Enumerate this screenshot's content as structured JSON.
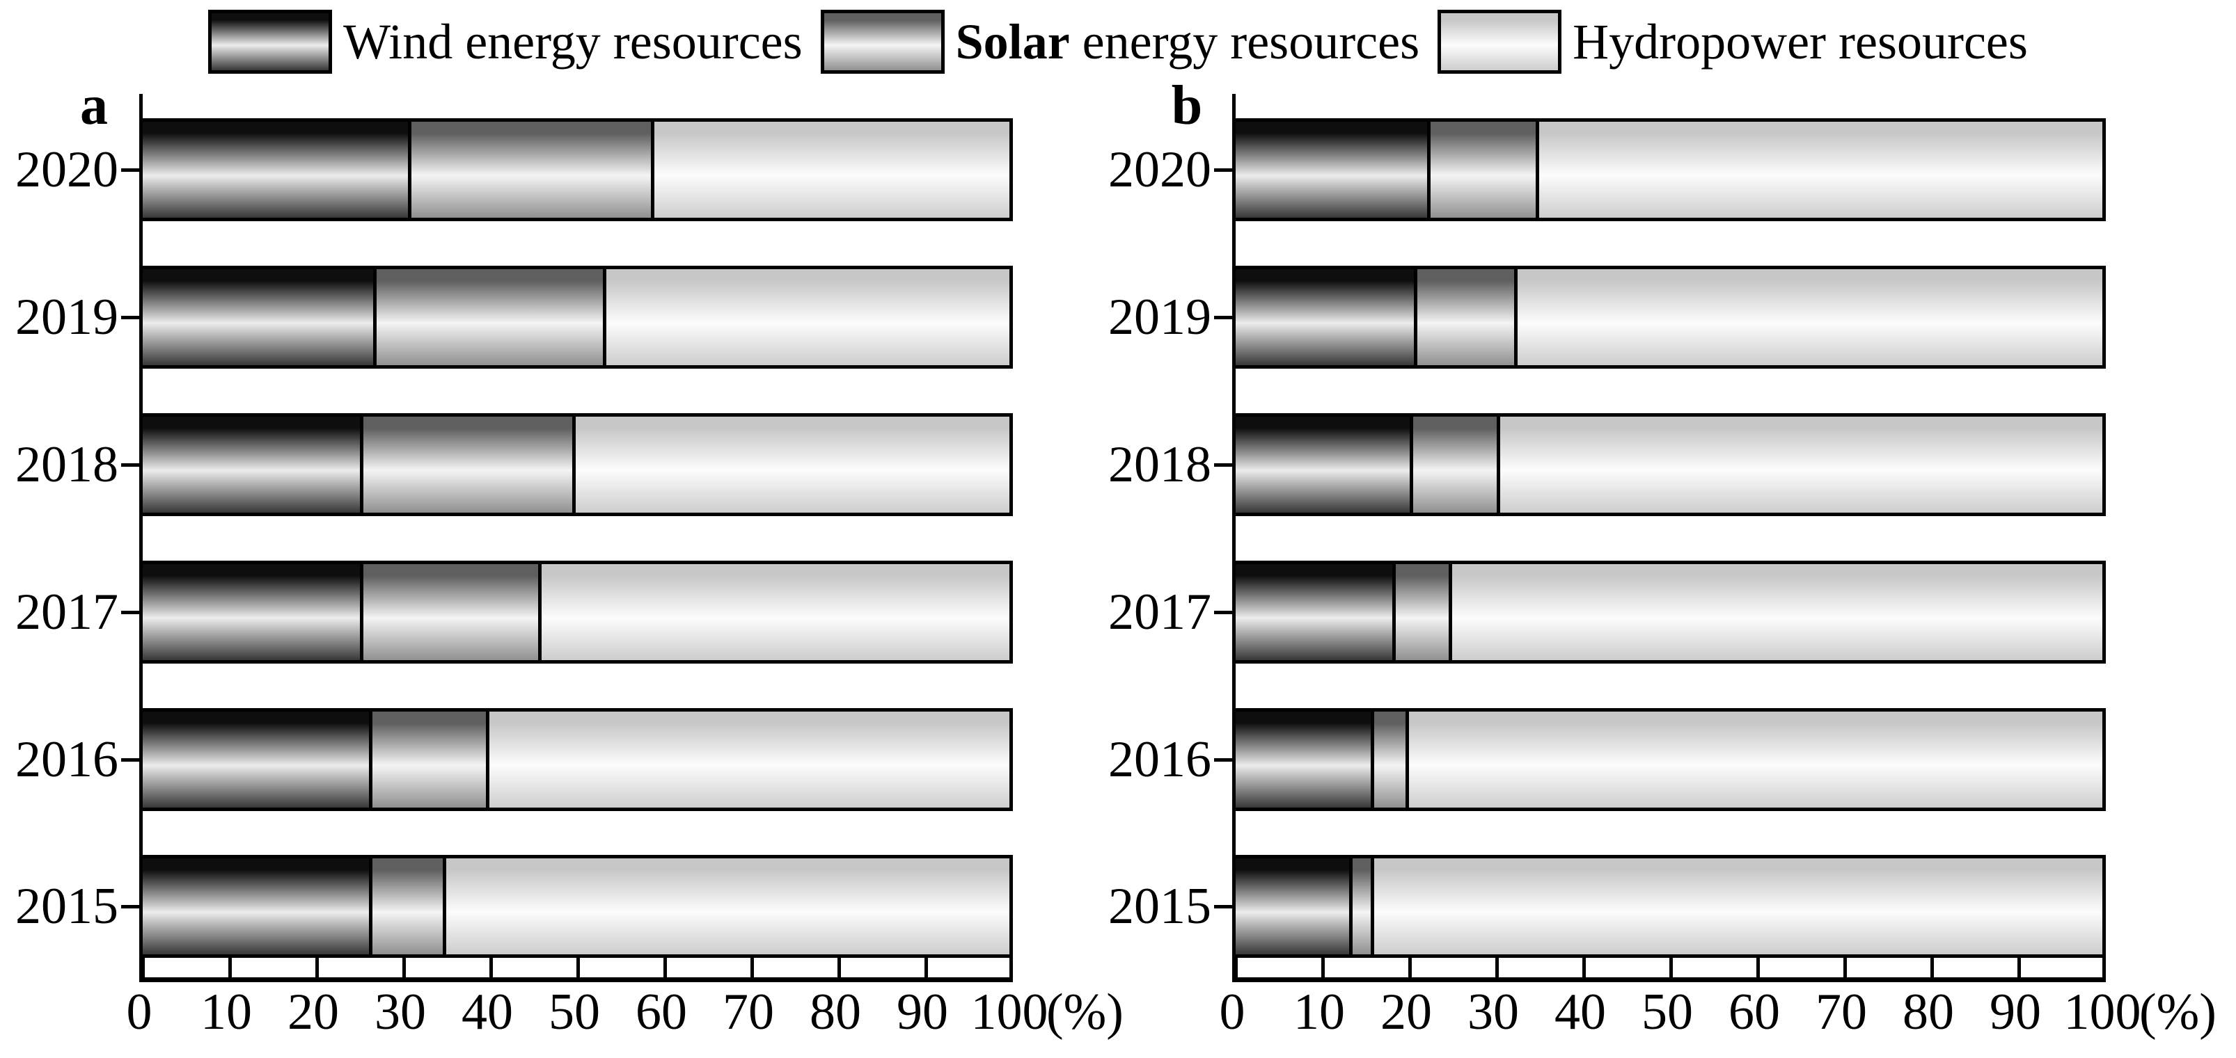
{
  "legend": {
    "items": [
      {
        "id": "wind",
        "bold": "",
        "text": "Wind energy resources"
      },
      {
        "id": "solar",
        "bold": "Solar",
        "text": " energy resources"
      },
      {
        "id": "hydro",
        "bold": "",
        "text": "Hydropower resources"
      }
    ]
  },
  "chart_data": [
    {
      "type": "bar",
      "orientation": "horizontal",
      "stacked": true,
      "panel_label": "a",
      "categories": [
        "2020",
        "2019",
        "2018",
        "2017",
        "2016",
        "2015"
      ],
      "series": [
        {
          "name": "Wind energy resources",
          "key": "wind",
          "values": [
            31,
            27,
            25.5,
            25.5,
            26.5,
            26.5
          ]
        },
        {
          "name": "Solar energy resources",
          "key": "solar",
          "values": [
            28,
            26.5,
            24.5,
            20.5,
            13.5,
            8.5
          ]
        },
        {
          "name": "Hydropower resources",
          "key": "hydro",
          "values": [
            41,
            46.5,
            50,
            54,
            60,
            65
          ]
        }
      ],
      "xlabel": "(%)",
      "xlim": [
        0,
        100
      ],
      "xticks": [
        0,
        10,
        20,
        30,
        40,
        50,
        60,
        70,
        80,
        90,
        100
      ],
      "grid": false,
      "legend_position": "top"
    },
    {
      "type": "bar",
      "orientation": "horizontal",
      "stacked": true,
      "panel_label": "b",
      "categories": [
        "2020",
        "2019",
        "2018",
        "2017",
        "2016",
        "2015"
      ],
      "series": [
        {
          "name": "Wind energy resources",
          "key": "wind",
          "values": [
            22.5,
            21,
            20.5,
            18.5,
            16,
            13.5
          ]
        },
        {
          "name": "Solar energy resources",
          "key": "solar",
          "values": [
            12.5,
            11.5,
            10,
            6.5,
            4,
            2.5
          ]
        },
        {
          "name": "Hydropower resources",
          "key": "hydro",
          "values": [
            65,
            67.5,
            69.5,
            75,
            80,
            84
          ]
        }
      ],
      "xlabel": "(%)",
      "xlim": [
        0,
        100
      ],
      "xticks": [
        0,
        10,
        20,
        30,
        40,
        50,
        60,
        70,
        80,
        90,
        100
      ],
      "grid": false,
      "legend_position": "top"
    }
  ],
  "colors": {
    "border": "#000000",
    "background": "#ffffff",
    "wind_top": "#0e0e0e",
    "wind_light": "#ececec",
    "wind_bottom": "#383838",
    "solar_top": "#5f5f5f",
    "solar_light": "#f4f4f4",
    "solar_bottom": "#909090",
    "hydro_top": "#c7c7c7",
    "hydro_light": "#fcfcfc",
    "hydro_bottom": "#cdcdcd"
  }
}
